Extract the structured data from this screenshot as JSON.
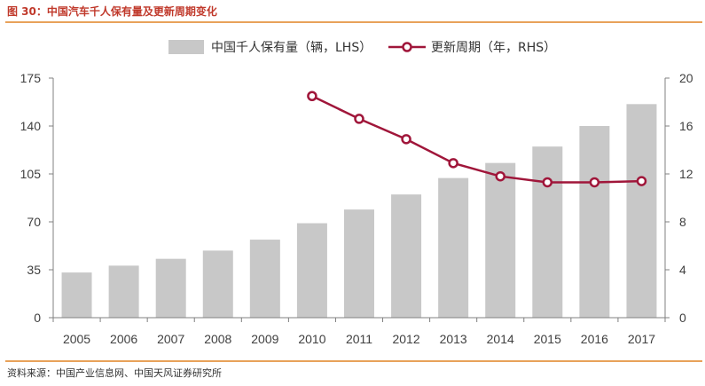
{
  "figure": {
    "title": "图 30：中国汽车千人保有量及更新周期变化",
    "source": "资料来源：中国产业信息网、中国天风证券研究所"
  },
  "colors": {
    "bar": "#c8c8c8",
    "line": "#a0163a",
    "accent_rule": "#e8a25a",
    "title": "#c0392b"
  },
  "chart_data": {
    "type": "bar+line",
    "categories": [
      "2005",
      "2006",
      "2007",
      "2008",
      "2009",
      "2010",
      "2011",
      "2012",
      "2013",
      "2014",
      "2015",
      "2016",
      "2017"
    ],
    "series": [
      {
        "name": "中国千人保有量（辆，LHS）",
        "type": "bar",
        "axis": "left",
        "values": [
          33,
          38,
          43,
          49,
          57,
          69,
          79,
          90,
          102,
          113,
          125,
          140,
          156
        ]
      },
      {
        "name": "更新周期（年，RHS）",
        "type": "line",
        "axis": "right",
        "values": [
          null,
          null,
          null,
          null,
          null,
          18.5,
          16.6,
          14.9,
          12.9,
          11.8,
          11.3,
          11.3,
          11.4
        ]
      }
    ],
    "left_axis": {
      "min": 0,
      "max": 175,
      "ticks": [
        0,
        35,
        70,
        105,
        140,
        175
      ]
    },
    "right_axis": {
      "min": 0,
      "max": 20,
      "ticks": [
        0,
        4,
        8,
        12,
        16,
        20
      ]
    },
    "legend": "top-center",
    "grid": false
  }
}
